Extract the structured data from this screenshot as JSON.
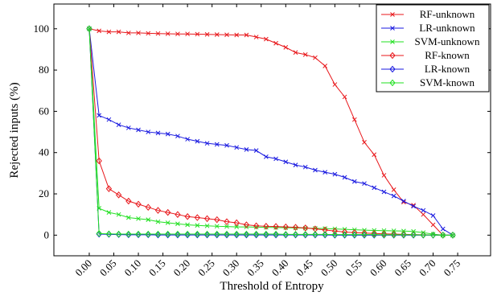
{
  "chart_data": {
    "type": "line",
    "x_label": "Threshold of Entropy",
    "y_label": "Rejected inputs (%)",
    "x": [
      0,
      0.02,
      0.04,
      0.06,
      0.08,
      0.1,
      0.12,
      0.14,
      0.16,
      0.18,
      0.2,
      0.22,
      0.24,
      0.26,
      0.28,
      0.3,
      0.32,
      0.34,
      0.36,
      0.38,
      0.4,
      0.42,
      0.44,
      0.46,
      0.48,
      0.5,
      0.52,
      0.54,
      0.56,
      0.58,
      0.6,
      0.62,
      0.64,
      0.66,
      0.68,
      0.7,
      0.72,
      0.74
    ],
    "series": [
      {
        "name": "RF-unknown",
        "color": "#e8171b",
        "marker": "x",
        "values": [
          100,
          99,
          98.5,
          98.5,
          98,
          98,
          97.8,
          97.7,
          97.6,
          97.5,
          97.5,
          97.4,
          97.3,
          97.2,
          97.1,
          97,
          97,
          96,
          95,
          93,
          91,
          88.5,
          87.5,
          86,
          82,
          73,
          67,
          56,
          45,
          39,
          29,
          22,
          16,
          14.5,
          10,
          5,
          0,
          0
        ]
      },
      {
        "name": "LR-unknown",
        "color": "#1a1ae0",
        "marker": "x",
        "values": [
          100,
          58,
          56,
          53.5,
          52,
          51,
          50,
          49.5,
          49,
          48,
          46.5,
          45.5,
          44.5,
          44,
          43.5,
          42.5,
          41.5,
          41,
          38,
          37,
          35.5,
          34,
          33,
          31.5,
          30.5,
          29.5,
          28,
          26,
          25,
          23,
          21,
          19,
          16.5,
          14,
          12,
          9.5,
          3,
          0
        ]
      },
      {
        "name": "SVM-unknown",
        "color": "#22e022",
        "marker": "x",
        "values": [
          100,
          13,
          11,
          10,
          8.5,
          8,
          7.5,
          6.5,
          6,
          5.5,
          5,
          4.7,
          4.5,
          4.3,
          4.2,
          4,
          4,
          3.9,
          3.8,
          3.7,
          3.6,
          3.5,
          3.4,
          3.3,
          3.2,
          3,
          2.8,
          2.6,
          2.4,
          2.3,
          2.2,
          2.1,
          2,
          1.8,
          1.2,
          0.5,
          0,
          0
        ]
      },
      {
        "name": "RF-known",
        "color": "#e8171b",
        "marker": "diamond",
        "values": [
          100,
          36,
          22.5,
          19.5,
          16.5,
          15,
          13.5,
          12,
          11,
          10,
          9,
          8.5,
          8,
          7.5,
          6.5,
          6,
          5,
          4.5,
          4.3,
          4.2,
          4,
          3.8,
          3.5,
          3,
          2.5,
          2,
          1.5,
          1.2,
          1,
          0.8,
          0.6,
          0.5,
          0.4,
          0.3,
          0.2,
          0.1,
          0,
          0
        ]
      },
      {
        "name": "LR-known",
        "color": "#1a1ae0",
        "marker": "diamond",
        "values": [
          100,
          0.5,
          0.4,
          0.3,
          0.2,
          0.2,
          0.2,
          0.1,
          0.1,
          0.1,
          0.1,
          0.1,
          0.1,
          0.1,
          0.1,
          0.1,
          0.1,
          0.1,
          0.1,
          0.1,
          0.1,
          0.1,
          0.1,
          0.1,
          0.1,
          0,
          0,
          0,
          0,
          0,
          0,
          0,
          0,
          0,
          0,
          0,
          0,
          0
        ]
      },
      {
        "name": "SVM-known",
        "color": "#22e022",
        "marker": "diamond",
        "values": [
          100,
          0.8,
          0.6,
          0.5,
          0.5,
          0.5,
          0.5,
          0.5,
          0.5,
          0.5,
          0.5,
          0.5,
          0.5,
          0.5,
          0.5,
          0.5,
          0.5,
          0.5,
          0.5,
          0.5,
          0.4,
          0.4,
          0.4,
          0.4,
          0.4,
          0.3,
          0.3,
          0.3,
          0.3,
          0.3,
          0.2,
          0.2,
          0.2,
          0.2,
          0.1,
          0.1,
          0,
          0
        ]
      }
    ],
    "xlim": [
      -0.072,
      0.817
    ],
    "ylim": [
      -10,
      112
    ],
    "xticks": [
      {
        "value": 0,
        "label": "0.00"
      },
      {
        "value": 0.05,
        "label": "0.05"
      },
      {
        "value": 0.1,
        "label": "0.10"
      },
      {
        "value": 0.15,
        "label": "0.15"
      },
      {
        "value": 0.2,
        "label": "0.20"
      },
      {
        "value": 0.25,
        "label": "0.25"
      },
      {
        "value": 0.3,
        "label": "0.30"
      },
      {
        "value": 0.35,
        "label": "0.35"
      },
      {
        "value": 0.4,
        "label": "0.40"
      },
      {
        "value": 0.45,
        "label": "0.45"
      },
      {
        "value": 0.5,
        "label": "0.50"
      },
      {
        "value": 0.55,
        "label": "0.55"
      },
      {
        "value": 0.6,
        "label": "0.60"
      },
      {
        "value": 0.65,
        "label": "0.65"
      },
      {
        "value": 0.7,
        "label": "0.70"
      },
      {
        "value": 0.75,
        "label": "0.75"
      }
    ],
    "yticks": [
      0,
      20,
      40,
      60,
      80,
      100
    ],
    "legend": "top-right"
  }
}
